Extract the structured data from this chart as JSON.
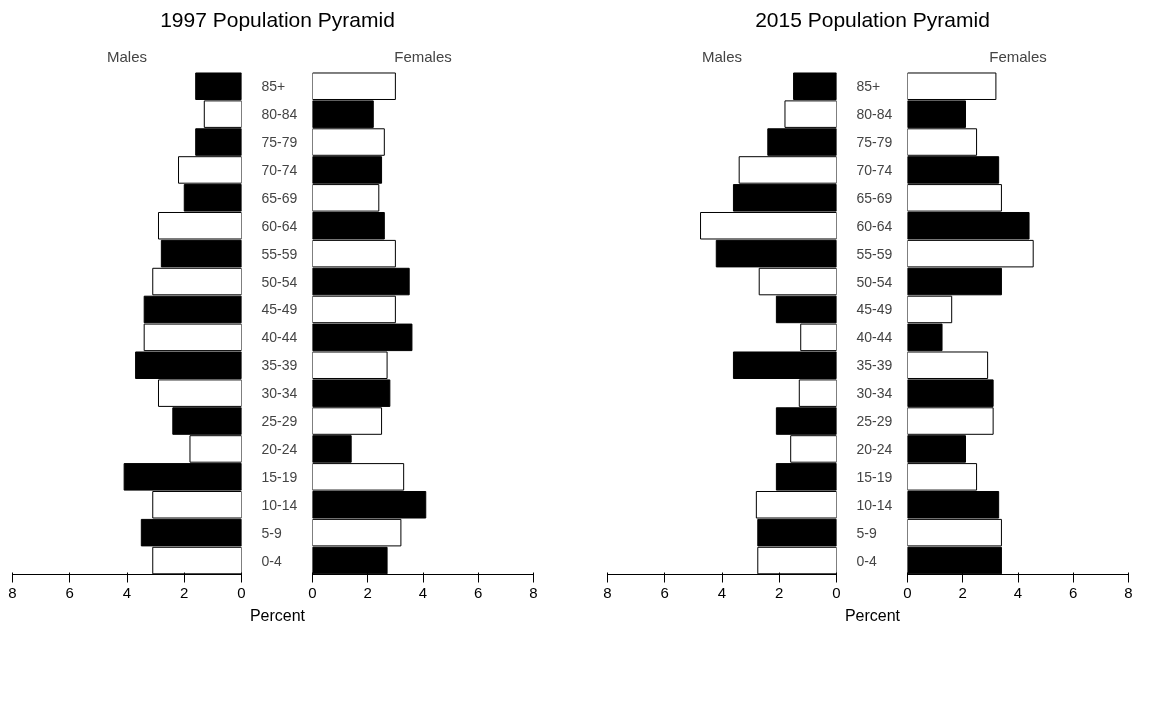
{
  "chart_data": [
    {
      "type": "bar",
      "orientation": "horizontal",
      "title": "1997 Population Pyramid",
      "subtitle": "Males",
      "xlabel": "Percent",
      "categories": [
        "85+",
        "80-84",
        "75-79",
        "70-74",
        "65-69",
        "60-64",
        "55-59",
        "50-54",
        "45-49",
        "40-44",
        "35-39",
        "30-34",
        "25-29",
        "20-24",
        "15-19",
        "10-14",
        "5-9",
        "0-4"
      ],
      "values": [
        1.6,
        1.3,
        1.6,
        2.2,
        2.0,
        2.9,
        2.8,
        3.1,
        3.4,
        3.4,
        3.7,
        2.9,
        2.4,
        1.8,
        4.1,
        3.1,
        3.5,
        3.1
      ],
      "colors": [
        "#000000",
        "#ffffff",
        "#000000",
        "#ffffff",
        "#000000",
        "#ffffff",
        "#000000",
        "#ffffff",
        "#000000",
        "#ffffff",
        "#000000",
        "#ffffff",
        "#000000",
        "#ffffff",
        "#000000",
        "#ffffff",
        "#000000",
        "#ffffff"
      ],
      "xlim": [
        8,
        0
      ],
      "xticks": [
        0,
        2,
        4,
        6,
        8
      ]
    },
    {
      "type": "bar",
      "orientation": "horizontal",
      "subtitle": "Females",
      "categories": [
        null,
        null,
        null,
        null,
        null,
        null,
        null,
        null,
        null,
        null,
        null,
        null,
        null,
        null,
        null,
        null,
        null,
        null
      ],
      "values": [
        3.0,
        2.2,
        2.6,
        2.5,
        2.4,
        2.6,
        3.0,
        3.5,
        3.0,
        3.6,
        2.7,
        2.8,
        2.5,
        1.4,
        3.3,
        4.1,
        3.2,
        2.7
      ],
      "colors": [
        "#ffffff",
        "#000000",
        "#ffffff",
        "#000000",
        "#ffffff",
        "#000000",
        "#ffffff",
        "#000000",
        "#ffffff",
        "#000000",
        "#ffffff",
        "#000000",
        "#ffffff",
        "#000000",
        "#ffffff",
        "#000000",
        "#ffffff",
        "#000000"
      ],
      "xlim": [
        0,
        8
      ],
      "xticks": [
        0,
        2,
        4,
        6,
        8
      ],
      "tick_labels": "x"
    },
    {
      "type": "bar",
      "orientation": "horizontal",
      "title": "2015 Population Pyramid",
      "subtitle": "Males",
      "xlabel": "Percent",
      "categories": [
        "85+",
        "80-84",
        "75-79",
        "70-74",
        "65-69",
        "60-64",
        "55-59",
        "50-54",
        "45-49",
        "40-44",
        "35-39",
        "30-34",
        "25-29",
        "20-24",
        "15-19",
        "10-14",
        "5-9",
        "0-4"
      ],
      "values": [
        1.5,
        1.8,
        2.4,
        3.4,
        3.6,
        4.75,
        4.2,
        2.7,
        2.1,
        1.25,
        3.6,
        1.3,
        2.1,
        1.6,
        2.1,
        2.8,
        2.75,
        2.75
      ],
      "colors": [
        "#000000",
        "#ffffff",
        "#000000",
        "#ffffff",
        "#000000",
        "#ffffff",
        "#000000",
        "#ffffff",
        "#000000",
        "#ffffff",
        "#000000",
        "#ffffff",
        "#000000",
        "#ffffff",
        "#000000",
        "#ffffff",
        "#000000",
        "#ffffff"
      ],
      "xlim": [
        8,
        0
      ],
      "xticks": [
        0,
        2,
        4,
        6,
        8
      ]
    },
    {
      "type": "bar",
      "orientation": "horizontal",
      "subtitle": "Females",
      "categories": [
        null,
        null,
        null,
        null,
        null,
        null,
        null,
        null,
        null,
        null,
        null,
        null,
        null,
        null,
        null,
        null,
        null,
        null
      ],
      "values": [
        3.2,
        2.1,
        2.5,
        3.3,
        3.4,
        4.4,
        4.55,
        3.4,
        1.6,
        1.25,
        2.9,
        3.1,
        3.1,
        2.1,
        2.5,
        3.3,
        3.4,
        3.4
      ],
      "colors": [
        "#ffffff",
        "#000000",
        "#ffffff",
        "#000000",
        "#ffffff",
        "#000000",
        "#ffffff",
        "#000000",
        "#ffffff",
        "#000000",
        "#ffffff",
        "#000000",
        "#ffffff",
        "#000000",
        "#ffffff",
        "#000000",
        "#ffffff",
        "#000000"
      ],
      "xlim": [
        0,
        8
      ],
      "xticks": [
        0,
        2,
        4,
        6,
        8
      ],
      "tick_labels": "x"
    }
  ]
}
